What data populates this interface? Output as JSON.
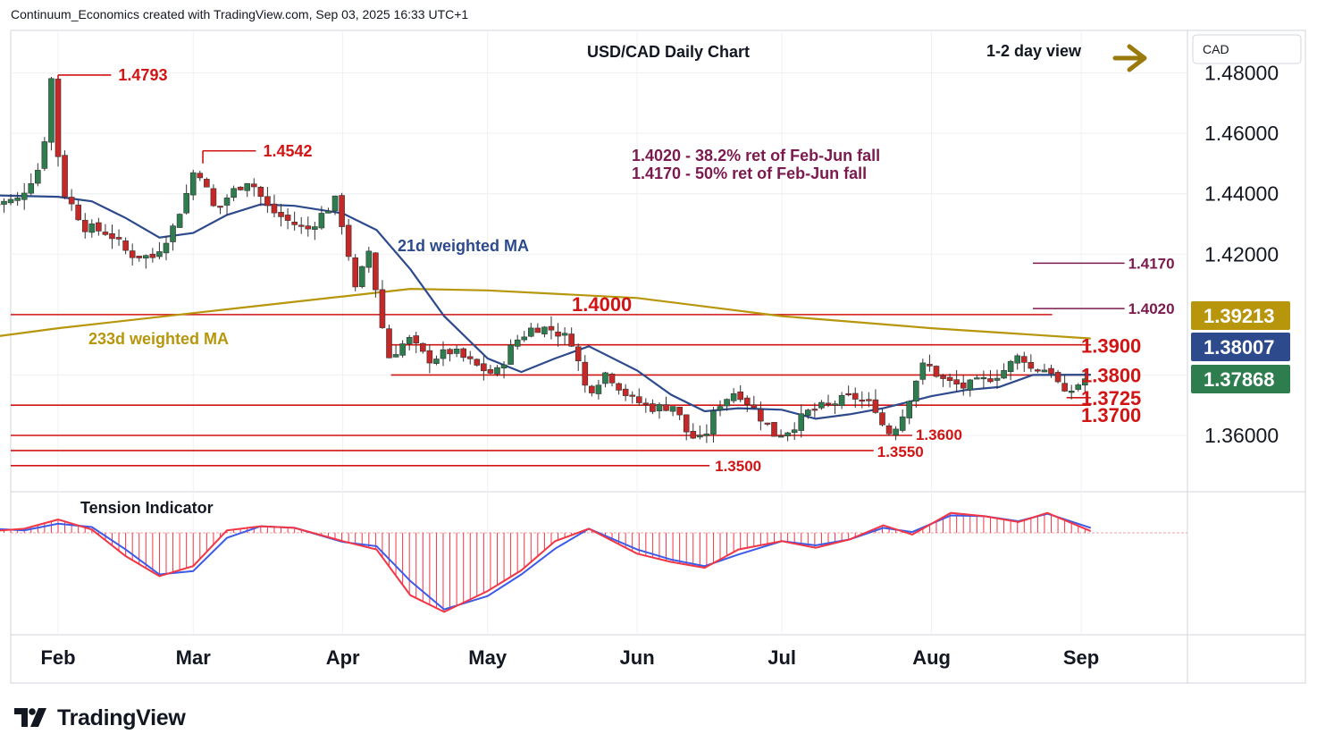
{
  "header": {
    "attribution": "Continuum_Economics created with TradingView.com, Sep 03, 2025 16:33 UTC+1"
  },
  "branding": {
    "wordmark": "TradingView",
    "logo_icon": "tradingview-logo-icon"
  },
  "colors": {
    "up_candle": "#2e7d4f",
    "down_candle": "#c62828",
    "sma21": "#2c4a8c",
    "sma233": "#b8960c",
    "level_line": "#d11414",
    "retracement_line": "#7b1a4e",
    "tension_fast": "#f23645",
    "tension_slow": "#3c5be8",
    "arrow": "#9a7a0c"
  },
  "chart_data": {
    "type": "candlestick",
    "title": "USD/CAD Daily Chart",
    "view": "1-2 day view",
    "view_icon": "right-arrow-icon",
    "currency": "CAD",
    "ylim": [
      1.34,
      1.49
    ],
    "y_ticks": [
      "1.48000",
      "1.46000",
      "1.44000",
      "1.42000",
      "1.36000"
    ],
    "y_tick_values": [
      1.48,
      1.46,
      1.44,
      1.42,
      1.36
    ],
    "x_ticks": [
      {
        "label": "Feb",
        "date": "2025-02-01"
      },
      {
        "label": "Mar",
        "date": "2025-03-01"
      },
      {
        "label": "Apr",
        "date": "2025-04-01"
      },
      {
        "label": "May",
        "date": "2025-05-01"
      },
      {
        "label": "Jun",
        "date": "2025-06-01"
      },
      {
        "label": "Jul",
        "date": "2025-07-01"
      },
      {
        "label": "Aug",
        "date": "2025-08-01"
      },
      {
        "label": "Sep",
        "date": "2025-09-01"
      }
    ],
    "price_badges": [
      {
        "value": "1.39213",
        "color": "#b8960c",
        "series": "233d weighted MA"
      },
      {
        "value": "1.38007",
        "color": "#2c4a8c",
        "series": "21d weighted MA"
      },
      {
        "value": "1.37868",
        "color": "#2e7d4f",
        "series": "last"
      }
    ],
    "levels": [
      {
        "label": "1.4793",
        "value": 1.4793,
        "type": "high",
        "from": "2025-02-01",
        "to": "2025-02-12"
      },
      {
        "label": "1.4542",
        "value": 1.4542,
        "type": "high",
        "from": "2025-03-03",
        "to": "2025-03-14"
      },
      {
        "label": "1.4000",
        "value": 1.4,
        "type": "level",
        "from": "2025-01-18",
        "to": "2025-08-26"
      },
      {
        "label": "1.3900",
        "value": 1.39,
        "type": "level",
        "from": "2025-04-11",
        "to": "2025-09-03"
      },
      {
        "label": "1.3800",
        "value": 1.38,
        "type": "level",
        "from": "2025-04-11",
        "to": "2025-09-03"
      },
      {
        "label": "1.3725",
        "value": 1.3725,
        "type": "level",
        "from": "2025-08-29",
        "to": "2025-09-03"
      },
      {
        "label": "1.3700",
        "value": 1.37,
        "type": "level",
        "from": "2025-01-18",
        "to": "2025-09-03"
      },
      {
        "label": "1.3600",
        "value": 1.36,
        "type": "level",
        "from": "2025-01-18",
        "to": "2025-07-28"
      },
      {
        "label": "1.3550",
        "value": 1.355,
        "type": "level",
        "from": "2025-01-18",
        "to": "2025-07-20"
      },
      {
        "label": "1.3500",
        "value": 1.35,
        "type": "level",
        "from": "2025-01-18",
        "to": "2025-06-16"
      },
      {
        "label": "1.4170",
        "value": 1.417,
        "type": "retracement",
        "from": "2025-08-22",
        "to": "2025-09-10"
      },
      {
        "label": "1.4020",
        "value": 1.402,
        "type": "retracement",
        "from": "2025-08-22",
        "to": "2025-09-10"
      }
    ],
    "annotations": [
      "1.4020 - 38.2% ret of Feb-Jun fall",
      "1.4170 - 50% ret of Feb-Jun fall"
    ],
    "ma_labels": {
      "sma21": "21d weighted MA",
      "sma233": "233d weighted MA"
    },
    "ma233": [
      {
        "x": "2025-01-18",
        "y": 1.3925
      },
      {
        "x": "2025-02-01",
        "y": 1.3955
      },
      {
        "x": "2025-03-01",
        "y": 1.4005
      },
      {
        "x": "2025-04-01",
        "y": 1.406
      },
      {
        "x": "2025-04-15",
        "y": 1.4085
      },
      {
        "x": "2025-05-01",
        "y": 1.408
      },
      {
        "x": "2025-06-01",
        "y": 1.4055
      },
      {
        "x": "2025-07-01",
        "y": 1.3995
      },
      {
        "x": "2025-08-01",
        "y": 1.3955
      },
      {
        "x": "2025-09-03",
        "y": 1.3921
      }
    ],
    "ma21": [
      {
        "x": "2025-01-18",
        "y": 1.4395
      },
      {
        "x": "2025-02-01",
        "y": 1.439
      },
      {
        "x": "2025-02-08",
        "y": 1.4375
      },
      {
        "x": "2025-02-15",
        "y": 1.432
      },
      {
        "x": "2025-02-22",
        "y": 1.4255
      },
      {
        "x": "2025-03-01",
        "y": 1.427
      },
      {
        "x": "2025-03-08",
        "y": 1.433
      },
      {
        "x": "2025-03-15",
        "y": 1.4365
      },
      {
        "x": "2025-03-22",
        "y": 1.436
      },
      {
        "x": "2025-04-01",
        "y": 1.4335
      },
      {
        "x": "2025-04-08",
        "y": 1.428
      },
      {
        "x": "2025-04-15",
        "y": 1.415
      },
      {
        "x": "2025-04-22",
        "y": 1.3995
      },
      {
        "x": "2025-05-01",
        "y": 1.3855
      },
      {
        "x": "2025-05-08",
        "y": 1.381
      },
      {
        "x": "2025-05-15",
        "y": 1.3855
      },
      {
        "x": "2025-05-22",
        "y": 1.3895
      },
      {
        "x": "2025-06-01",
        "y": 1.3815
      },
      {
        "x": "2025-06-08",
        "y": 1.3735
      },
      {
        "x": "2025-06-15",
        "y": 1.368
      },
      {
        "x": "2025-06-22",
        "y": 1.369
      },
      {
        "x": "2025-07-01",
        "y": 1.3685
      },
      {
        "x": "2025-07-08",
        "y": 1.3655
      },
      {
        "x": "2025-07-15",
        "y": 1.367
      },
      {
        "x": "2025-07-22",
        "y": 1.369
      },
      {
        "x": "2025-08-01",
        "y": 1.373
      },
      {
        "x": "2025-08-08",
        "y": 1.375
      },
      {
        "x": "2025-08-15",
        "y": 1.376
      },
      {
        "x": "2025-08-22",
        "y": 1.38
      },
      {
        "x": "2025-09-03",
        "y": 1.3801
      }
    ],
    "price_path": [
      {
        "x": "2025-01-18",
        "y": 1.436
      },
      {
        "x": "2025-01-25",
        "y": 1.438
      },
      {
        "x": "2025-01-30",
        "y": 1.45
      },
      {
        "x": "2025-02-01",
        "y": 1.478
      },
      {
        "x": "2025-02-03",
        "y": 1.442
      },
      {
        "x": "2025-02-08",
        "y": 1.429
      },
      {
        "x": "2025-02-13",
        "y": 1.427
      },
      {
        "x": "2025-02-17",
        "y": 1.42
      },
      {
        "x": "2025-02-22",
        "y": 1.419
      },
      {
        "x": "2025-02-26",
        "y": 1.428
      },
      {
        "x": "2025-03-01",
        "y": 1.44
      },
      {
        "x": "2025-03-03",
        "y": 1.45
      },
      {
        "x": "2025-03-07",
        "y": 1.434
      },
      {
        "x": "2025-03-10",
        "y": 1.44
      },
      {
        "x": "2025-03-14",
        "y": 1.445
      },
      {
        "x": "2025-03-18",
        "y": 1.435
      },
      {
        "x": "2025-03-22",
        "y": 1.431
      },
      {
        "x": "2025-03-26",
        "y": 1.428
      },
      {
        "x": "2025-04-01",
        "y": 1.438
      },
      {
        "x": "2025-04-03",
        "y": 1.425
      },
      {
        "x": "2025-04-05",
        "y": 1.408
      },
      {
        "x": "2025-04-08",
        "y": 1.422
      },
      {
        "x": "2025-04-10",
        "y": 1.4
      },
      {
        "x": "2025-04-12",
        "y": 1.386
      },
      {
        "x": "2025-04-16",
        "y": 1.392
      },
      {
        "x": "2025-04-20",
        "y": 1.385
      },
      {
        "x": "2025-04-25",
        "y": 1.388
      },
      {
        "x": "2025-04-30",
        "y": 1.383
      },
      {
        "x": "2025-05-04",
        "y": 1.38
      },
      {
        "x": "2025-05-08",
        "y": 1.391
      },
      {
        "x": "2025-05-12",
        "y": 1.396
      },
      {
        "x": "2025-05-16",
        "y": 1.395
      },
      {
        "x": "2025-05-20",
        "y": 1.391
      },
      {
        "x": "2025-05-23",
        "y": 1.374
      },
      {
        "x": "2025-05-27",
        "y": 1.381
      },
      {
        "x": "2025-06-01",
        "y": 1.372
      },
      {
        "x": "2025-06-06",
        "y": 1.369
      },
      {
        "x": "2025-06-10",
        "y": 1.37
      },
      {
        "x": "2025-06-13",
        "y": 1.36
      },
      {
        "x": "2025-06-16",
        "y": 1.358
      },
      {
        "x": "2025-06-19",
        "y": 1.37
      },
      {
        "x": "2025-06-23",
        "y": 1.375
      },
      {
        "x": "2025-06-27",
        "y": 1.368
      },
      {
        "x": "2025-07-01",
        "y": 1.36
      },
      {
        "x": "2025-07-04",
        "y": 1.362
      },
      {
        "x": "2025-07-08",
        "y": 1.368
      },
      {
        "x": "2025-07-12",
        "y": 1.37
      },
      {
        "x": "2025-07-17",
        "y": 1.373
      },
      {
        "x": "2025-07-22",
        "y": 1.369
      },
      {
        "x": "2025-07-24",
        "y": 1.36
      },
      {
        "x": "2025-07-27",
        "y": 1.365
      },
      {
        "x": "2025-07-30",
        "y": 1.378
      },
      {
        "x": "2025-08-01",
        "y": 1.384
      },
      {
        "x": "2025-08-05",
        "y": 1.378
      },
      {
        "x": "2025-08-09",
        "y": 1.376
      },
      {
        "x": "2025-08-13",
        "y": 1.378
      },
      {
        "x": "2025-08-17",
        "y": 1.381
      },
      {
        "x": "2025-08-21",
        "y": 1.387
      },
      {
        "x": "2025-08-23",
        "y": 1.382
      },
      {
        "x": "2025-08-27",
        "y": 1.382
      },
      {
        "x": "2025-08-30",
        "y": 1.373
      },
      {
        "x": "2025-09-03",
        "y": 1.3787
      }
    ],
    "indicator": {
      "name": "Tension Indicator",
      "fast": [
        {
          "x": "2025-01-18",
          "y": 0.2
        },
        {
          "x": "2025-01-25",
          "y": 0.5
        },
        {
          "x": "2025-02-01",
          "y": 1.6
        },
        {
          "x": "2025-02-08",
          "y": 0.4
        },
        {
          "x": "2025-02-15",
          "y": -2.8
        },
        {
          "x": "2025-02-22",
          "y": -5.2
        },
        {
          "x": "2025-03-01",
          "y": -4.0
        },
        {
          "x": "2025-03-08",
          "y": 0.3
        },
        {
          "x": "2025-03-15",
          "y": 0.8
        },
        {
          "x": "2025-03-22",
          "y": 0.6
        },
        {
          "x": "2025-04-01",
          "y": -1.0
        },
        {
          "x": "2025-04-08",
          "y": -2.0
        },
        {
          "x": "2025-04-15",
          "y": -7.5
        },
        {
          "x": "2025-04-22",
          "y": -9.5
        },
        {
          "x": "2025-05-01",
          "y": -7.0
        },
        {
          "x": "2025-05-08",
          "y": -4.5
        },
        {
          "x": "2025-05-15",
          "y": -1.0
        },
        {
          "x": "2025-05-22",
          "y": 0.5
        },
        {
          "x": "2025-06-01",
          "y": -2.5
        },
        {
          "x": "2025-06-08",
          "y": -3.5
        },
        {
          "x": "2025-06-15",
          "y": -4.2
        },
        {
          "x": "2025-06-22",
          "y": -2.0
        },
        {
          "x": "2025-07-01",
          "y": -1.0
        },
        {
          "x": "2025-07-08",
          "y": -1.8
        },
        {
          "x": "2025-07-15",
          "y": -0.8
        },
        {
          "x": "2025-07-22",
          "y": 0.9
        },
        {
          "x": "2025-07-28",
          "y": -0.2
        },
        {
          "x": "2025-08-05",
          "y": 2.4
        },
        {
          "x": "2025-08-12",
          "y": 2.0
        },
        {
          "x": "2025-08-19",
          "y": 1.3
        },
        {
          "x": "2025-08-25",
          "y": 2.4
        },
        {
          "x": "2025-09-03",
          "y": 0.2
        }
      ],
      "slow": [
        {
          "x": "2025-01-18",
          "y": 0.5
        },
        {
          "x": "2025-01-25",
          "y": 0.3
        },
        {
          "x": "2025-02-01",
          "y": 1.1
        },
        {
          "x": "2025-02-08",
          "y": 0.7
        },
        {
          "x": "2025-02-15",
          "y": -2.0
        },
        {
          "x": "2025-02-22",
          "y": -5.0
        },
        {
          "x": "2025-03-01",
          "y": -4.6
        },
        {
          "x": "2025-03-08",
          "y": -0.6
        },
        {
          "x": "2025-03-15",
          "y": 0.8
        },
        {
          "x": "2025-03-22",
          "y": 0.6
        },
        {
          "x": "2025-04-01",
          "y": -1.1
        },
        {
          "x": "2025-04-08",
          "y": -1.6
        },
        {
          "x": "2025-04-15",
          "y": -5.8
        },
        {
          "x": "2025-04-22",
          "y": -9.2
        },
        {
          "x": "2025-05-01",
          "y": -7.6
        },
        {
          "x": "2025-05-08",
          "y": -5.0
        },
        {
          "x": "2025-05-15",
          "y": -1.9
        },
        {
          "x": "2025-05-22",
          "y": 0.5
        },
        {
          "x": "2025-06-01",
          "y": -2.0
        },
        {
          "x": "2025-06-08",
          "y": -3.2
        },
        {
          "x": "2025-06-15",
          "y": -4.0
        },
        {
          "x": "2025-06-22",
          "y": -2.6
        },
        {
          "x": "2025-07-01",
          "y": -1.0
        },
        {
          "x": "2025-07-08",
          "y": -1.5
        },
        {
          "x": "2025-07-15",
          "y": -0.8
        },
        {
          "x": "2025-07-22",
          "y": 0.6
        },
        {
          "x": "2025-07-28",
          "y": 0.1
        },
        {
          "x": "2025-08-05",
          "y": 2.1
        },
        {
          "x": "2025-08-12",
          "y": 2.0
        },
        {
          "x": "2025-08-19",
          "y": 1.4
        },
        {
          "x": "2025-08-25",
          "y": 2.3
        },
        {
          "x": "2025-09-03",
          "y": 0.6
        }
      ],
      "ylim": [
        -11,
        3.5
      ]
    }
  }
}
